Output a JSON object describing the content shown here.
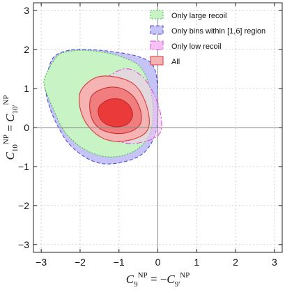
{
  "chart_data": {
    "type": "contour",
    "title": "",
    "xlim": [
      -3.2,
      3.2
    ],
    "ylim": [
      -3.2,
      3.2
    ],
    "xticks": [
      -3,
      -2,
      -1,
      0,
      1,
      2,
      3
    ],
    "yticks": [
      -3,
      -2,
      -1,
      0,
      1,
      2,
      3
    ],
    "x_tick_labels": [
      "−3",
      "−2",
      "−1",
      "0",
      "1",
      "2",
      "3"
    ],
    "y_tick_labels": [
      "−3",
      "−2",
      "−1",
      "0",
      "1",
      "2",
      "3"
    ],
    "grid": true,
    "legend_position": "top-right",
    "xlabel": {
      "lhs_symbol": "C",
      "lhs_sub": "9",
      "lhs_sup": "NP",
      "eq": " = −",
      "rhs_symbol": "C",
      "rhs_sub": "9'",
      "rhs_sup": "NP"
    },
    "ylabel": {
      "lhs_symbol": "C",
      "lhs_sub": "10",
      "lhs_sup": "NP",
      "eq": " = ",
      "rhs_symbol": "C",
      "rhs_sub": "10'",
      "rhs_sup": "NP"
    },
    "series": [
      {
        "name": "Only large recoil",
        "fill": "#c8f3c4",
        "stroke": "#4bbf4b",
        "dash": "2,2",
        "regions": [
          [
            [
              -2.9,
              1.3
            ],
            [
              -2.6,
              1.82
            ],
            [
              -2.3,
              1.95
            ],
            [
              -1.9,
              1.98
            ],
            [
              -1.4,
              1.93
            ],
            [
              -0.9,
              1.8
            ],
            [
              -0.45,
              1.55
            ],
            [
              -0.2,
              1.0
            ],
            [
              -0.12,
              0.3
            ],
            [
              -0.28,
              -0.3
            ],
            [
              -0.7,
              -0.65
            ],
            [
              -1.3,
              -0.75
            ],
            [
              -1.9,
              -0.55
            ],
            [
              -2.4,
              -0.1
            ],
            [
              -2.7,
              0.5
            ],
            [
              -2.9,
              1.0
            ]
          ]
        ]
      },
      {
        "name": "Only bins within [1,6] region",
        "fill": "#c6c4f6",
        "stroke": "#4b4ddb",
        "dash": "5,3",
        "regions": [
          [
            [
              -2.88,
              1.2
            ],
            [
              -2.7,
              1.78
            ],
            [
              -2.3,
              1.98
            ],
            [
              -1.8,
              2.0
            ],
            [
              -1.2,
              1.95
            ],
            [
              -0.5,
              1.82
            ],
            [
              -0.1,
              1.55
            ],
            [
              0.0,
              0.8
            ],
            [
              -0.05,
              -0.1
            ],
            [
              -0.4,
              -0.68
            ],
            [
              -1.1,
              -0.92
            ],
            [
              -1.7,
              -0.85
            ],
            [
              -2.3,
              -0.4
            ],
            [
              -2.7,
              0.3
            ],
            [
              -2.88,
              0.9
            ]
          ]
        ]
      },
      {
        "name": "Only low recoil",
        "fill": "#f6c2f3",
        "stroke": "#e04fd7",
        "dash": "8,3,2,3",
        "regions": [
          [
            [
              -1.55,
              1.1
            ],
            [
              -0.9,
              1.5
            ],
            [
              -0.45,
              1.35
            ],
            [
              -0.12,
              0.9
            ],
            [
              0.08,
              0.3
            ],
            [
              0.05,
              -0.15
            ],
            [
              -0.3,
              -0.35
            ],
            [
              -0.8,
              -0.4
            ],
            [
              -1.4,
              -0.2
            ],
            [
              -1.7,
              0.3
            ],
            [
              -1.75,
              0.8
            ]
          ]
        ]
      },
      {
        "name": "All",
        "fill": "#f3b4b4",
        "stroke": "#d83a3a",
        "dash": "",
        "regions": [
          [
            [
              -1.98,
              0.95
            ],
            [
              -1.6,
              1.28
            ],
            [
              -1.1,
              1.3
            ],
            [
              -0.6,
              1.1
            ],
            [
              -0.32,
              0.65
            ],
            [
              -0.22,
              0.1
            ],
            [
              -0.4,
              -0.2
            ],
            [
              -0.9,
              -0.35
            ],
            [
              -1.4,
              -0.28
            ],
            [
              -1.8,
              0.05
            ],
            [
              -2.0,
              0.5
            ]
          ],
          [
            [
              -1.72,
              0.78
            ],
            [
              -1.4,
              1.0
            ],
            [
              -1.0,
              1.02
            ],
            [
              -0.65,
              0.82
            ],
            [
              -0.45,
              0.45
            ],
            [
              -0.45,
              0.1
            ],
            [
              -0.7,
              -0.1
            ],
            [
              -1.1,
              -0.15
            ],
            [
              -1.5,
              -0.02
            ],
            [
              -1.72,
              0.3
            ]
          ],
          [
            [
              -1.5,
              0.55
            ],
            [
              -1.25,
              0.72
            ],
            [
              -0.95,
              0.72
            ],
            [
              -0.72,
              0.55
            ],
            [
              -0.65,
              0.3
            ],
            [
              -0.8,
              0.08
            ],
            [
              -1.1,
              0.02
            ],
            [
              -1.38,
              0.12
            ],
            [
              -1.52,
              0.32
            ]
          ]
        ],
        "region_fills": [
          "#f5b3b3",
          "#f07e7e",
          "#ea3a3a"
        ],
        "region_strokes": [
          "#d83a3a",
          "#c73030",
          "#c02a2a"
        ]
      }
    ]
  }
}
